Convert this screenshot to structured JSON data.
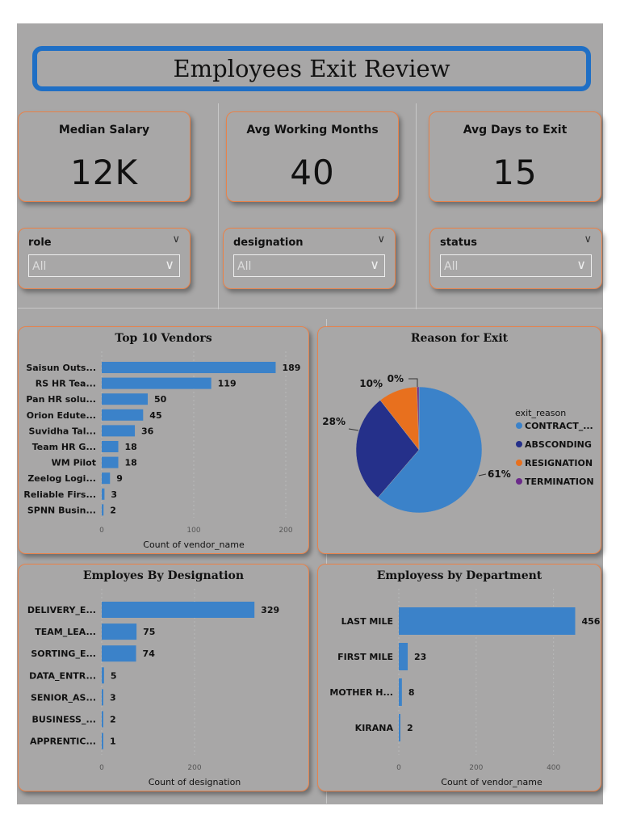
{
  "title": "Employees Exit Review",
  "kpis": [
    {
      "label": "Median Salary",
      "value": "12K"
    },
    {
      "label": "Avg Working Months",
      "value": "40"
    },
    {
      "label": "Avg Days to Exit",
      "value": "15"
    }
  ],
  "slicers": [
    {
      "label": "role",
      "value": "All"
    },
    {
      "label": "designation",
      "value": "All"
    },
    {
      "label": "status",
      "value": "All"
    }
  ],
  "colors": {
    "bar": "#3b82c9",
    "accent": "#1f6fc5",
    "card_border": "#e8824a"
  },
  "chart_data": [
    {
      "type": "bar",
      "orientation": "horizontal",
      "title": "Top 10 Vendors",
      "categories": [
        "Saisun Outs...",
        "RS HR Tea...",
        "Pan HR solu...",
        "Orion Edute...",
        "Suvidha Tal...",
        "Team HR G...",
        "WM Pilot",
        "Zeelog Logi...",
        "Reliable Firs...",
        "SPNN Busin..."
      ],
      "values": [
        189,
        119,
        50,
        45,
        36,
        18,
        18,
        9,
        3,
        2
      ],
      "xlabel": "Count of vendor_name",
      "xlim": [
        0,
        200
      ],
      "ticks": [
        "0",
        "100",
        "200"
      ]
    },
    {
      "type": "pie",
      "title": "Reason for Exit",
      "legend_title": "exit_reason",
      "labels": [
        "CONTRACT_...",
        "ABSCONDING",
        "RESIGNATION",
        "TERMINATION"
      ],
      "values": [
        61,
        28,
        10,
        0.5
      ],
      "display": [
        "61%",
        "28%",
        "10%",
        "0%"
      ],
      "colors": [
        "#3b82c9",
        "#25308a",
        "#e8701e",
        "#6b2a8a"
      ]
    },
    {
      "type": "bar",
      "orientation": "horizontal",
      "title": "Employes By Designation",
      "categories": [
        "DELIVERY_E...",
        "TEAM_LEA...",
        "SORTING_E...",
        "DATA_ENTR...",
        "SENIOR_AS...",
        "BUSINESS_...",
        "APPRENTIC..."
      ],
      "values": [
        329,
        75,
        74,
        5,
        3,
        2,
        1
      ],
      "xlabel": "Count of designation",
      "xlim": [
        0,
        400
      ],
      "ticks": [
        "0",
        "200"
      ]
    },
    {
      "type": "bar",
      "orientation": "horizontal",
      "title": "Employess by Department",
      "categories": [
        "LAST MILE",
        "FIRST MILE",
        "MOTHER H...",
        "KIRANA"
      ],
      "values": [
        456,
        23,
        8,
        2
      ],
      "xlabel": "Count of vendor_name",
      "xlim": [
        0,
        480
      ],
      "ticks": [
        "0",
        "200",
        "400"
      ]
    }
  ]
}
